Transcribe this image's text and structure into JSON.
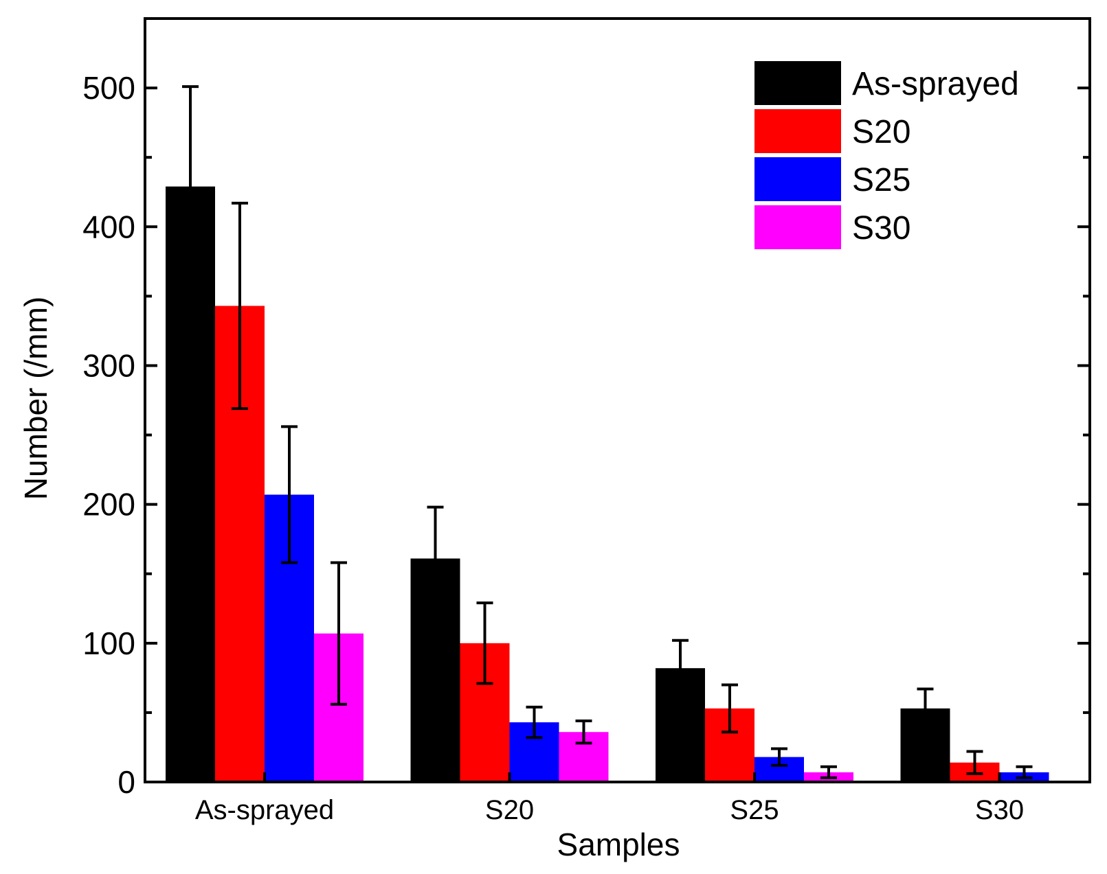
{
  "chart_data": {
    "type": "bar",
    "title": "",
    "xlabel": "Samples",
    "ylabel": "Number (/mm)",
    "categories": [
      "As-sprayed",
      "S20",
      "S25",
      "S30"
    ],
    "ylim": [
      0,
      550
    ],
    "yticks": [
      0,
      100,
      200,
      300,
      400,
      500
    ],
    "yticks_labels": [
      "0",
      "100",
      "200",
      "300",
      "400",
      "500"
    ],
    "legend_position": "top-right",
    "series": [
      {
        "name": "As-sprayed",
        "color": "#000000",
        "values": [
          429,
          161,
          82,
          53
        ],
        "errors": [
          72,
          37,
          20,
          14
        ]
      },
      {
        "name": "S20",
        "color": "#ff0000",
        "values": [
          343,
          100,
          53,
          14
        ],
        "errors": [
          74,
          29,
          17,
          8
        ]
      },
      {
        "name": "S25",
        "color": "#0000ff",
        "values": [
          207,
          43,
          18,
          7
        ],
        "errors": [
          49,
          11,
          6,
          4
        ]
      },
      {
        "name": "S30",
        "color": "#ff00ff",
        "values": [
          107,
          36,
          7,
          0
        ],
        "errors": [
          51,
          8,
          4,
          0
        ]
      }
    ]
  }
}
